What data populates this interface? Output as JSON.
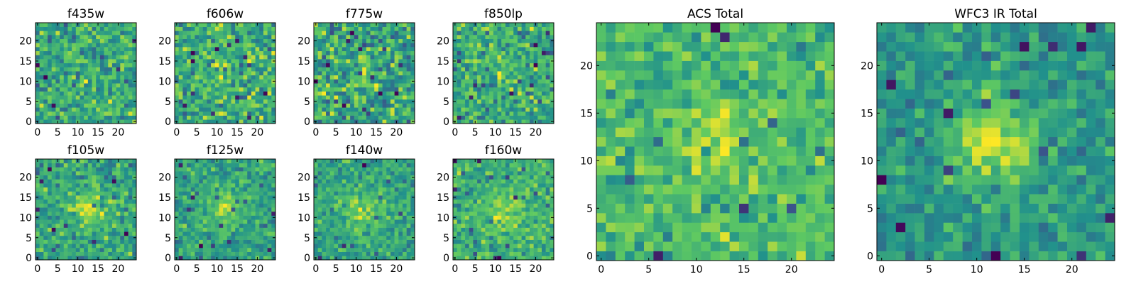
{
  "figure": {
    "colormap": [
      "#440154",
      "#3b528b",
      "#21918c",
      "#5ec962",
      "#fde725"
    ]
  },
  "chart_data": [
    {
      "type": "heatmap",
      "title": "f435w",
      "x_ticks": [
        0,
        5,
        10,
        15,
        20
      ],
      "y_ticks": [
        0,
        5,
        10,
        15,
        20
      ],
      "xlim": [
        -0.5,
        24.5
      ],
      "ylim": [
        -0.5,
        24.5
      ],
      "grid_size": 25,
      "seed": 11,
      "blob": {
        "cx": 12,
        "cy": 12,
        "amp": 0.05,
        "sigma": 3
      },
      "noise": 0.35
    },
    {
      "type": "heatmap",
      "title": "f606w",
      "x_ticks": [
        0,
        5,
        10,
        15,
        20
      ],
      "y_ticks": [
        0,
        5,
        10,
        15,
        20
      ],
      "xlim": [
        -0.5,
        24.5
      ],
      "ylim": [
        -0.5,
        24.5
      ],
      "grid_size": 25,
      "seed": 23,
      "blob": {
        "cx": 12,
        "cy": 12,
        "amp": 0.15,
        "sigma": 2.5
      },
      "noise": 0.35
    },
    {
      "type": "heatmap",
      "title": "f775w",
      "x_ticks": [
        0,
        5,
        10,
        15,
        20
      ],
      "y_ticks": [
        0,
        5,
        10,
        15,
        20
      ],
      "xlim": [
        -0.5,
        24.5
      ],
      "ylim": [
        -0.5,
        24.5
      ],
      "grid_size": 25,
      "seed": 37,
      "blob": {
        "cx": 12,
        "cy": 12,
        "amp": 0.15,
        "sigma": 2.5
      },
      "noise": 0.35
    },
    {
      "type": "heatmap",
      "title": "f850lp",
      "x_ticks": [
        0,
        5,
        10,
        15,
        20
      ],
      "y_ticks": [
        0,
        5,
        10,
        15,
        20
      ],
      "xlim": [
        -0.5,
        24.5
      ],
      "ylim": [
        -0.5,
        24.5
      ],
      "grid_size": 25,
      "seed": 41,
      "blob": {
        "cx": 12,
        "cy": 12,
        "amp": 0.1,
        "sigma": 2.5
      },
      "noise": 0.35
    },
    {
      "type": "heatmap",
      "title": "f105w",
      "x_ticks": [
        0,
        5,
        10,
        15,
        20
      ],
      "y_ticks": [
        0,
        5,
        10,
        15,
        20
      ],
      "xlim": [
        -0.5,
        24.5
      ],
      "ylim": [
        -0.5,
        24.5
      ],
      "grid_size": 25,
      "seed": 53,
      "blob": {
        "cx": 12,
        "cy": 12,
        "amp": 0.35,
        "sigma": 3
      },
      "noise": 0.3
    },
    {
      "type": "heatmap",
      "title": "f125w",
      "x_ticks": [
        0,
        5,
        10,
        15,
        20
      ],
      "y_ticks": [
        0,
        5,
        10,
        15,
        20
      ],
      "xlim": [
        -0.5,
        24.5
      ],
      "ylim": [
        -0.5,
        24.5
      ],
      "grid_size": 25,
      "seed": 67,
      "blob": {
        "cx": 12,
        "cy": 12,
        "amp": 0.35,
        "sigma": 3.5
      },
      "noise": 0.3
    },
    {
      "type": "heatmap",
      "title": "f140w",
      "x_ticks": [
        0,
        5,
        10,
        15,
        20
      ],
      "y_ticks": [
        0,
        5,
        10,
        15,
        20
      ],
      "xlim": [
        -0.5,
        24.5
      ],
      "ylim": [
        -0.5,
        24.5
      ],
      "grid_size": 25,
      "seed": 79,
      "blob": {
        "cx": 12,
        "cy": 12,
        "amp": 0.3,
        "sigma": 3.5
      },
      "noise": 0.3
    },
    {
      "type": "heatmap",
      "title": "f160w",
      "x_ticks": [
        0,
        5,
        10,
        15,
        20
      ],
      "y_ticks": [
        0,
        5,
        10,
        15,
        20
      ],
      "xlim": [
        -0.5,
        24.5
      ],
      "ylim": [
        -0.5,
        24.5
      ],
      "grid_size": 25,
      "seed": 83,
      "blob": {
        "cx": 13,
        "cy": 12,
        "amp": 0.35,
        "sigma": 3
      },
      "noise": 0.3
    },
    {
      "type": "heatmap",
      "title": "ACS Total",
      "x_ticks": [
        0,
        5,
        10,
        15,
        20
      ],
      "y_ticks": [
        0,
        5,
        10,
        15,
        20
      ],
      "xlim": [
        -0.5,
        24.5
      ],
      "ylim": [
        -0.5,
        24.5
      ],
      "grid_size": 25,
      "seed": 97,
      "blob": {
        "cx": 12,
        "cy": 12,
        "amp": 0.3,
        "sigma": 2.5
      },
      "noise": 0.3
    },
    {
      "type": "heatmap",
      "title": "WFC3 IR Total",
      "x_ticks": [
        0,
        5,
        10,
        15,
        20
      ],
      "y_ticks": [
        0,
        5,
        10,
        15,
        20
      ],
      "xlim": [
        -0.5,
        24.5
      ],
      "ylim": [
        -0.5,
        24.5
      ],
      "grid_size": 25,
      "seed": 101,
      "blob": {
        "cx": 12,
        "cy": 12,
        "amp": 0.45,
        "sigma": 3
      },
      "noise": 0.22
    }
  ]
}
